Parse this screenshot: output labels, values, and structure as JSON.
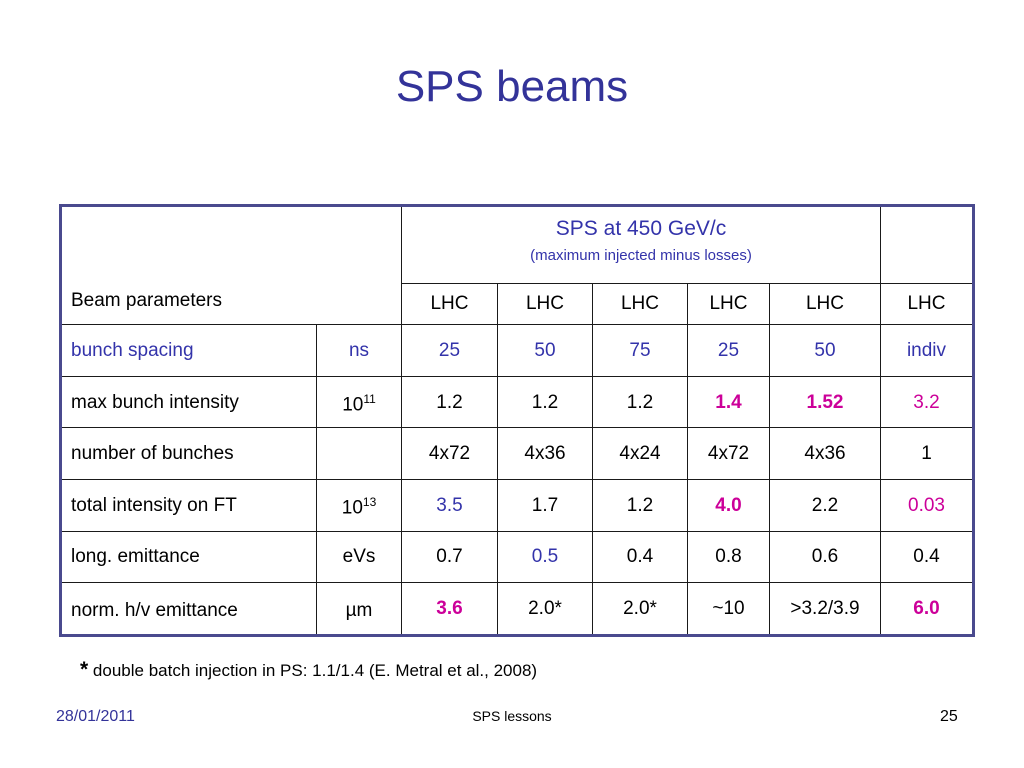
{
  "title": "SPS beams",
  "table": {
    "header_label": "Beam parameters",
    "sps_title": "SPS at 450 GeV/c",
    "sps_subtitle": "(maximum injected minus losses)",
    "beam_types": [
      "LHC",
      "LHC",
      "LHC",
      "LHC",
      "LHC",
      "LHC"
    ],
    "rows": [
      {
        "param": "bunch spacing",
        "unit": "",
        "unit_html": "ns",
        "values": [
          "25",
          "50",
          "75",
          "25",
          "50",
          "indiv"
        ]
      },
      {
        "param": "max bunch intensity",
        "unit": "1011",
        "unit_html": "10<sup>11</sup>",
        "values": [
          "1.2",
          "1.2",
          "1.2",
          "1.4",
          "1.52",
          "3.2"
        ]
      },
      {
        "param": "number of bunches",
        "unit": "",
        "unit_html": "",
        "values": [
          "4x72",
          "4x36",
          "4x24",
          "4x72",
          "4x36",
          "1"
        ]
      },
      {
        "param": "total intensity on FT",
        "unit": "1013",
        "unit_html": "10<sup>13</sup>",
        "values": [
          "3.5",
          "1.7",
          "1.2",
          "4.0",
          "2.2",
          "0.03"
        ]
      },
      {
        "param": "long. emittance",
        "unit": "eVs",
        "unit_html": "eVs",
        "values": [
          "0.7",
          "0.5",
          "0.4",
          "0.8",
          "0.6",
          "0.4"
        ]
      },
      {
        "param": "norm. h/v emittance",
        "unit": "µm",
        "unit_html": "µm",
        "values": [
          "3.6",
          "2.0*",
          "2.0*",
          "~10",
          ">3.2/3.9",
          "6.0"
        ]
      }
    ]
  },
  "footnote": {
    "marker": "*",
    "text": "double batch injection in PS: 1.1/1.4 (E. Metral et al., 2008)"
  },
  "footer": {
    "date": "28/01/2011",
    "center": "SPS lessons",
    "page": "25"
  },
  "colors": {
    "title": "#333399",
    "highlight_blue": "#3333aa",
    "highlight_magenta": "#cc0099",
    "table_border": "#4a4a8e"
  }
}
